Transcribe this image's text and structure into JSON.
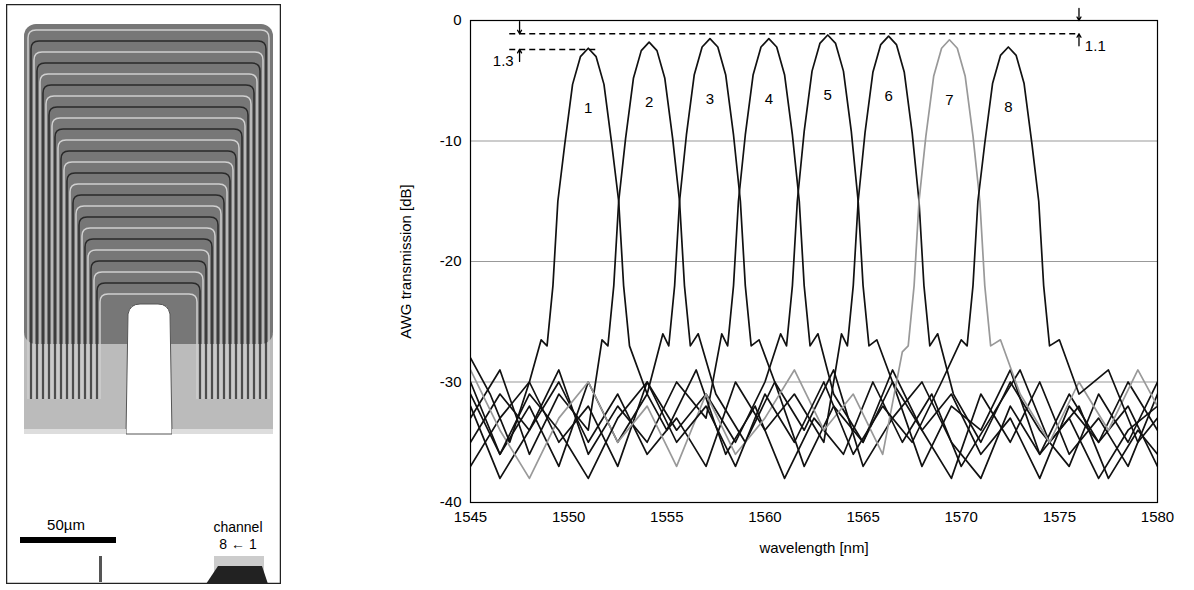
{
  "chart_data": {
    "type": "line",
    "xlabel": "wavelength [nm]",
    "ylabel": "AWG transmission [dB]",
    "xlim": [
      1545,
      1580
    ],
    "xticks": [
      1545,
      1550,
      1555,
      1560,
      1565,
      1570,
      1575,
      1580
    ],
    "ylim": [
      -40,
      0
    ],
    "yticks": [
      -40,
      -30,
      -20,
      -10,
      0
    ],
    "grid": true,
    "series": [
      {
        "name": "1",
        "color": "#111111",
        "x": [
          1545,
          1546,
          1547,
          1548,
          1548.6,
          1548.9,
          1549.2,
          1549.45,
          1549.8,
          1550.2,
          1550.6,
          1551,
          1551.4,
          1551.8,
          1552.2,
          1552.55,
          1552.8,
          1553.1,
          1554,
          1555,
          1556.5,
          1558,
          1559.5,
          1561,
          1562.5,
          1564,
          1565.5,
          1567,
          1568.5,
          1570,
          1571.5,
          1573,
          1574.5,
          1576,
          1577.5,
          1579,
          1580
        ],
        "values": [
          -28,
          -31,
          -35,
          -30,
          -26.5,
          -27,
          -22,
          -15,
          -10.3,
          -5.3,
          -3.0,
          -2.3,
          -3.0,
          -5.3,
          -10.3,
          -15,
          -22,
          -27,
          -31,
          -34,
          -29,
          -36,
          -32,
          -38,
          -33,
          -36,
          -30,
          -35,
          -31,
          -37,
          -33,
          -29,
          -35,
          -32,
          -38,
          -34,
          -36
        ]
      },
      {
        "name": "2",
        "color": "#111111",
        "x": [
          1545,
          1546.5,
          1548,
          1549.5,
          1551,
          1551.7,
          1552.0,
          1552.3,
          1552.55,
          1552.9,
          1553.3,
          1553.7,
          1554.1,
          1554.5,
          1554.9,
          1555.3,
          1555.65,
          1555.9,
          1556.2,
          1556.6,
          1557.5,
          1559,
          1560.5,
          1562,
          1563.5,
          1565,
          1566.5,
          1568,
          1569.5,
          1571,
          1572.5,
          1574,
          1575.5,
          1577,
          1578.5,
          1580
        ],
        "values": [
          -33,
          -29,
          -36,
          -31,
          -34,
          -26.5,
          -27,
          -22,
          -15,
          -9.8,
          -4.8,
          -2.5,
          -1.8,
          -2.5,
          -4.8,
          -9.8,
          -15,
          -22,
          -27,
          -26,
          -31,
          -35,
          -30,
          -37,
          -32,
          -35,
          -29,
          -34,
          -38,
          -31,
          -35,
          -30,
          -36,
          -33,
          -37,
          -31
        ]
      },
      {
        "name": "3",
        "color": "#111111",
        "x": [
          1545,
          1546.5,
          1548,
          1549.5,
          1551,
          1552.5,
          1554,
          1554.8,
          1555.1,
          1555.4,
          1555.65,
          1556.0,
          1556.4,
          1556.8,
          1557.2,
          1557.6,
          1558.0,
          1558.4,
          1558.75,
          1559.0,
          1559.3,
          1559.7,
          1560.5,
          1562,
          1563.5,
          1565,
          1566.5,
          1568,
          1569.5,
          1571,
          1572.5,
          1574,
          1575.5,
          1577,
          1578.5,
          1580
        ],
        "values": [
          -30,
          -36,
          -32,
          -37,
          -30,
          -35,
          -31,
          -26,
          -27,
          -22,
          -15,
          -9.5,
          -4.5,
          -2.2,
          -1.5,
          -2.2,
          -4.5,
          -9.5,
          -15,
          -22,
          -27,
          -26.5,
          -30,
          -34,
          -29,
          -37,
          -33,
          -30,
          -35,
          -38,
          -32,
          -36,
          -31,
          -35,
          -32,
          -37
        ]
      },
      {
        "name": "4",
        "color": "#111111",
        "x": [
          1545,
          1546.5,
          1548,
          1549.5,
          1551,
          1552.5,
          1554,
          1555.5,
          1557,
          1557.8,
          1558.1,
          1558.4,
          1558.65,
          1559.0,
          1559.4,
          1559.8,
          1560.2,
          1560.6,
          1561.0,
          1561.4,
          1561.75,
          1562.0,
          1562.3,
          1562.7,
          1563.5,
          1565,
          1566.5,
          1568,
          1569.5,
          1571,
          1572.5,
          1574,
          1575.5,
          1577,
          1578.5,
          1580
        ],
        "values": [
          -35,
          -31,
          -34,
          -29,
          -36,
          -32,
          -35,
          -30,
          -33,
          -26,
          -27,
          -22,
          -15,
          -9.5,
          -4.5,
          -2.2,
          -1.5,
          -2.2,
          -4.5,
          -9.5,
          -15,
          -22,
          -27,
          -26,
          -31,
          -35,
          -30,
          -37,
          -32,
          -34,
          -29,
          -36,
          -33,
          -38,
          -34,
          -32
        ]
      },
      {
        "name": "5",
        "color": "#111111",
        "x": [
          1545,
          1546.5,
          1548,
          1549.5,
          1551,
          1552.5,
          1554,
          1555.5,
          1557,
          1558.5,
          1560,
          1560.8,
          1561.1,
          1561.4,
          1561.65,
          1562.0,
          1562.4,
          1562.8,
          1563.2,
          1563.6,
          1564.0,
          1564.4,
          1564.75,
          1565.0,
          1565.3,
          1565.7,
          1566.5,
          1568,
          1569.5,
          1571,
          1572.5,
          1574,
          1575.5,
          1577,
          1578.5,
          1580
        ],
        "values": [
          -37,
          -33,
          -30,
          -35,
          -32,
          -37,
          -30,
          -34,
          -31,
          -35,
          -30,
          -26,
          -27,
          -22,
          -15,
          -9.2,
          -4.2,
          -1.9,
          -1.2,
          -1.9,
          -4.2,
          -9.2,
          -15,
          -22,
          -27,
          -26.5,
          -30,
          -34,
          -31,
          -36,
          -33,
          -38,
          -32,
          -35,
          -30,
          -34
        ]
      },
      {
        "name": "6",
        "color": "#111111",
        "x": [
          1545,
          1546.5,
          1548,
          1549.5,
          1551,
          1552.5,
          1554,
          1555.5,
          1557,
          1558.5,
          1560,
          1561.5,
          1563,
          1563.9,
          1564.2,
          1564.5,
          1564.75,
          1565.1,
          1565.5,
          1565.9,
          1566.3,
          1566.7,
          1567.1,
          1567.5,
          1567.85,
          1568.1,
          1568.4,
          1568.8,
          1569.6,
          1571,
          1572.5,
          1574,
          1575.5,
          1577,
          1578.5,
          1580
        ],
        "values": [
          -32,
          -38,
          -34,
          -30,
          -35,
          -31,
          -36,
          -33,
          -37,
          -30,
          -34,
          -31,
          -35,
          -26,
          -27,
          -22,
          -15,
          -9.3,
          -4.3,
          -2.0,
          -1.3,
          -2.0,
          -4.3,
          -9.3,
          -15,
          -22,
          -27,
          -26,
          -31,
          -35,
          -30,
          -34,
          -37,
          -31,
          -35,
          -30
        ]
      },
      {
        "name": "7",
        "color": "#999999",
        "x": [
          1545,
          1546.5,
          1548,
          1549.5,
          1551,
          1552.5,
          1554,
          1555.5,
          1557,
          1558.5,
          1560,
          1561.5,
          1563,
          1564.5,
          1566,
          1567,
          1567.3,
          1567.6,
          1567.85,
          1568.2,
          1568.6,
          1569.0,
          1569.4,
          1569.8,
          1570.2,
          1570.6,
          1570.95,
          1571.2,
          1571.5,
          1572,
          1573,
          1574.5,
          1576,
          1577.5,
          1579,
          1580
        ],
        "values": [
          -29,
          -34,
          -38,
          -33,
          -30,
          -35,
          -32,
          -37,
          -31,
          -36,
          -33,
          -29,
          -34,
          -31,
          -36,
          -27.5,
          -27,
          -22,
          -15,
          -9.6,
          -4.6,
          -2.3,
          -1.6,
          -2.3,
          -4.6,
          -9.6,
          -15,
          -22,
          -27,
          -26.5,
          -31,
          -35,
          -30,
          -34,
          -29,
          -32
        ]
      },
      {
        "name": "8",
        "color": "#111111",
        "x": [
          1545,
          1546.5,
          1548,
          1549.5,
          1551,
          1552.5,
          1554,
          1555.5,
          1557,
          1558.5,
          1560,
          1561.5,
          1563,
          1564.5,
          1566,
          1567.5,
          1569,
          1570,
          1570.3,
          1570.6,
          1570.85,
          1571.2,
          1571.6,
          1572.0,
          1572.4,
          1572.8,
          1573.2,
          1573.6,
          1573.95,
          1574.2,
          1574.5,
          1575,
          1576,
          1577.5,
          1579,
          1580
        ],
        "values": [
          -31,
          -36,
          -31,
          -34,
          -38,
          -33,
          -30,
          -35,
          -32,
          -37,
          -31,
          -35,
          -30,
          -36,
          -32,
          -35,
          -30,
          -26.5,
          -27,
          -22,
          -15,
          -10.2,
          -5.2,
          -2.9,
          -2.2,
          -2.9,
          -5.2,
          -10.2,
          -15,
          -22,
          -27,
          -26.5,
          -31,
          -29,
          -35,
          -33
        ]
      }
    ],
    "reference_lines": [
      {
        "y": -1.1,
        "x": [
          1547,
          1576
        ]
      },
      {
        "y": -2.4,
        "x": [
          1547,
          1551.5
        ]
      }
    ],
    "annotations": [
      {
        "text": "1.3",
        "x": 1547.5,
        "y": [
          -2.4,
          -1.1
        ]
      },
      {
        "text": "1.1",
        "x": 1576,
        "y": [
          -1.1,
          0
        ]
      }
    ]
  },
  "micrograph": {
    "scale_bar": "50µm",
    "channel_label": "channel",
    "channel_order": "8 ← 1"
  }
}
